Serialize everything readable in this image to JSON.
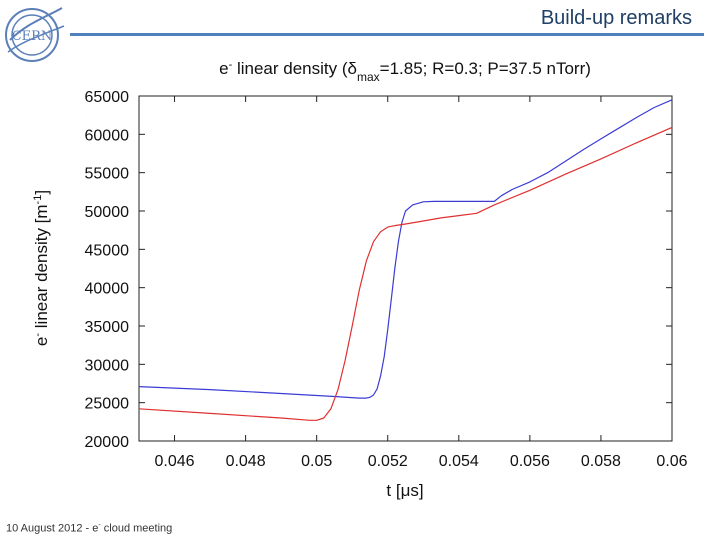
{
  "header": {
    "slide_title": "Build-up remarks",
    "logo_text": "CERN"
  },
  "footer": {
    "date": "10 August 2012",
    "separator": "-",
    "e_base": "e",
    "e_sup": "-",
    "rest": " cloud meeting"
  },
  "colors": {
    "accent": "#4f81bd",
    "series_blue": "#3b3bd6",
    "series_red": "#e03030"
  },
  "chart_data": {
    "type": "line",
    "title": "e- linear density (δmax=1.85; R=0.3; P=37.5 nTorr)",
    "xlabel": "t [μs]",
    "ylabel": "e- linear density [m-1]",
    "xlim": [
      0.045,
      0.06
    ],
    "ylim": [
      20000,
      65000
    ],
    "x_ticks": [
      0.046,
      0.048,
      0.05,
      0.052,
      0.054,
      0.056,
      0.058,
      0.06
    ],
    "x_tick_labels": [
      "0.046",
      "0.048",
      "0.05",
      "0.052",
      "0.054",
      "0.056",
      "0.058",
      "0.06"
    ],
    "y_ticks": [
      20000,
      25000,
      30000,
      35000,
      40000,
      45000,
      50000,
      55000,
      60000,
      65000
    ],
    "y_tick_labels": [
      "20000",
      "25000",
      "30000",
      "35000",
      "40000",
      "45000",
      "50000",
      "55000",
      "60000",
      "65000"
    ],
    "grid": false,
    "series": [
      {
        "color": "#3b3bd6",
        "x": [
          0.045,
          0.047,
          0.049,
          0.0505,
          0.0512,
          0.0514,
          0.0515,
          0.0516,
          0.0517,
          0.0518,
          0.0519,
          0.052,
          0.0521,
          0.0522,
          0.0523,
          0.0524,
          0.0525,
          0.0527,
          0.053,
          0.0533,
          0.0537,
          0.054,
          0.0545,
          0.055,
          0.0552,
          0.0555,
          0.056,
          0.0565,
          0.057,
          0.0575,
          0.058,
          0.0585,
          0.059,
          0.0595,
          0.06
        ],
        "y": [
          27100,
          26700,
          26200,
          25800,
          25600,
          25600,
          25700,
          26000,
          26800,
          28500,
          31000,
          34500,
          38500,
          42500,
          46000,
          48500,
          50000,
          50800,
          51200,
          51250,
          51250,
          51250,
          51250,
          51250,
          52000,
          52800,
          53800,
          55000,
          56500,
          58000,
          59400,
          60800,
          62200,
          63500,
          64500
        ]
      },
      {
        "color": "#e03030",
        "x": [
          0.045,
          0.047,
          0.049,
          0.0498,
          0.05,
          0.0502,
          0.0504,
          0.0506,
          0.0508,
          0.051,
          0.0512,
          0.0514,
          0.0516,
          0.0518,
          0.052,
          0.0522,
          0.0525,
          0.053,
          0.0535,
          0.054,
          0.0545,
          0.055,
          0.056,
          0.057,
          0.058,
          0.059,
          0.06
        ],
        "y": [
          24200,
          23600,
          23000,
          22700,
          22700,
          23000,
          24200,
          26700,
          30500,
          35000,
          39700,
          43500,
          46000,
          47300,
          47900,
          48100,
          48300,
          48700,
          49100,
          49400,
          49700,
          50800,
          52700,
          54800,
          56800,
          58900,
          60900
        ]
      }
    ]
  }
}
